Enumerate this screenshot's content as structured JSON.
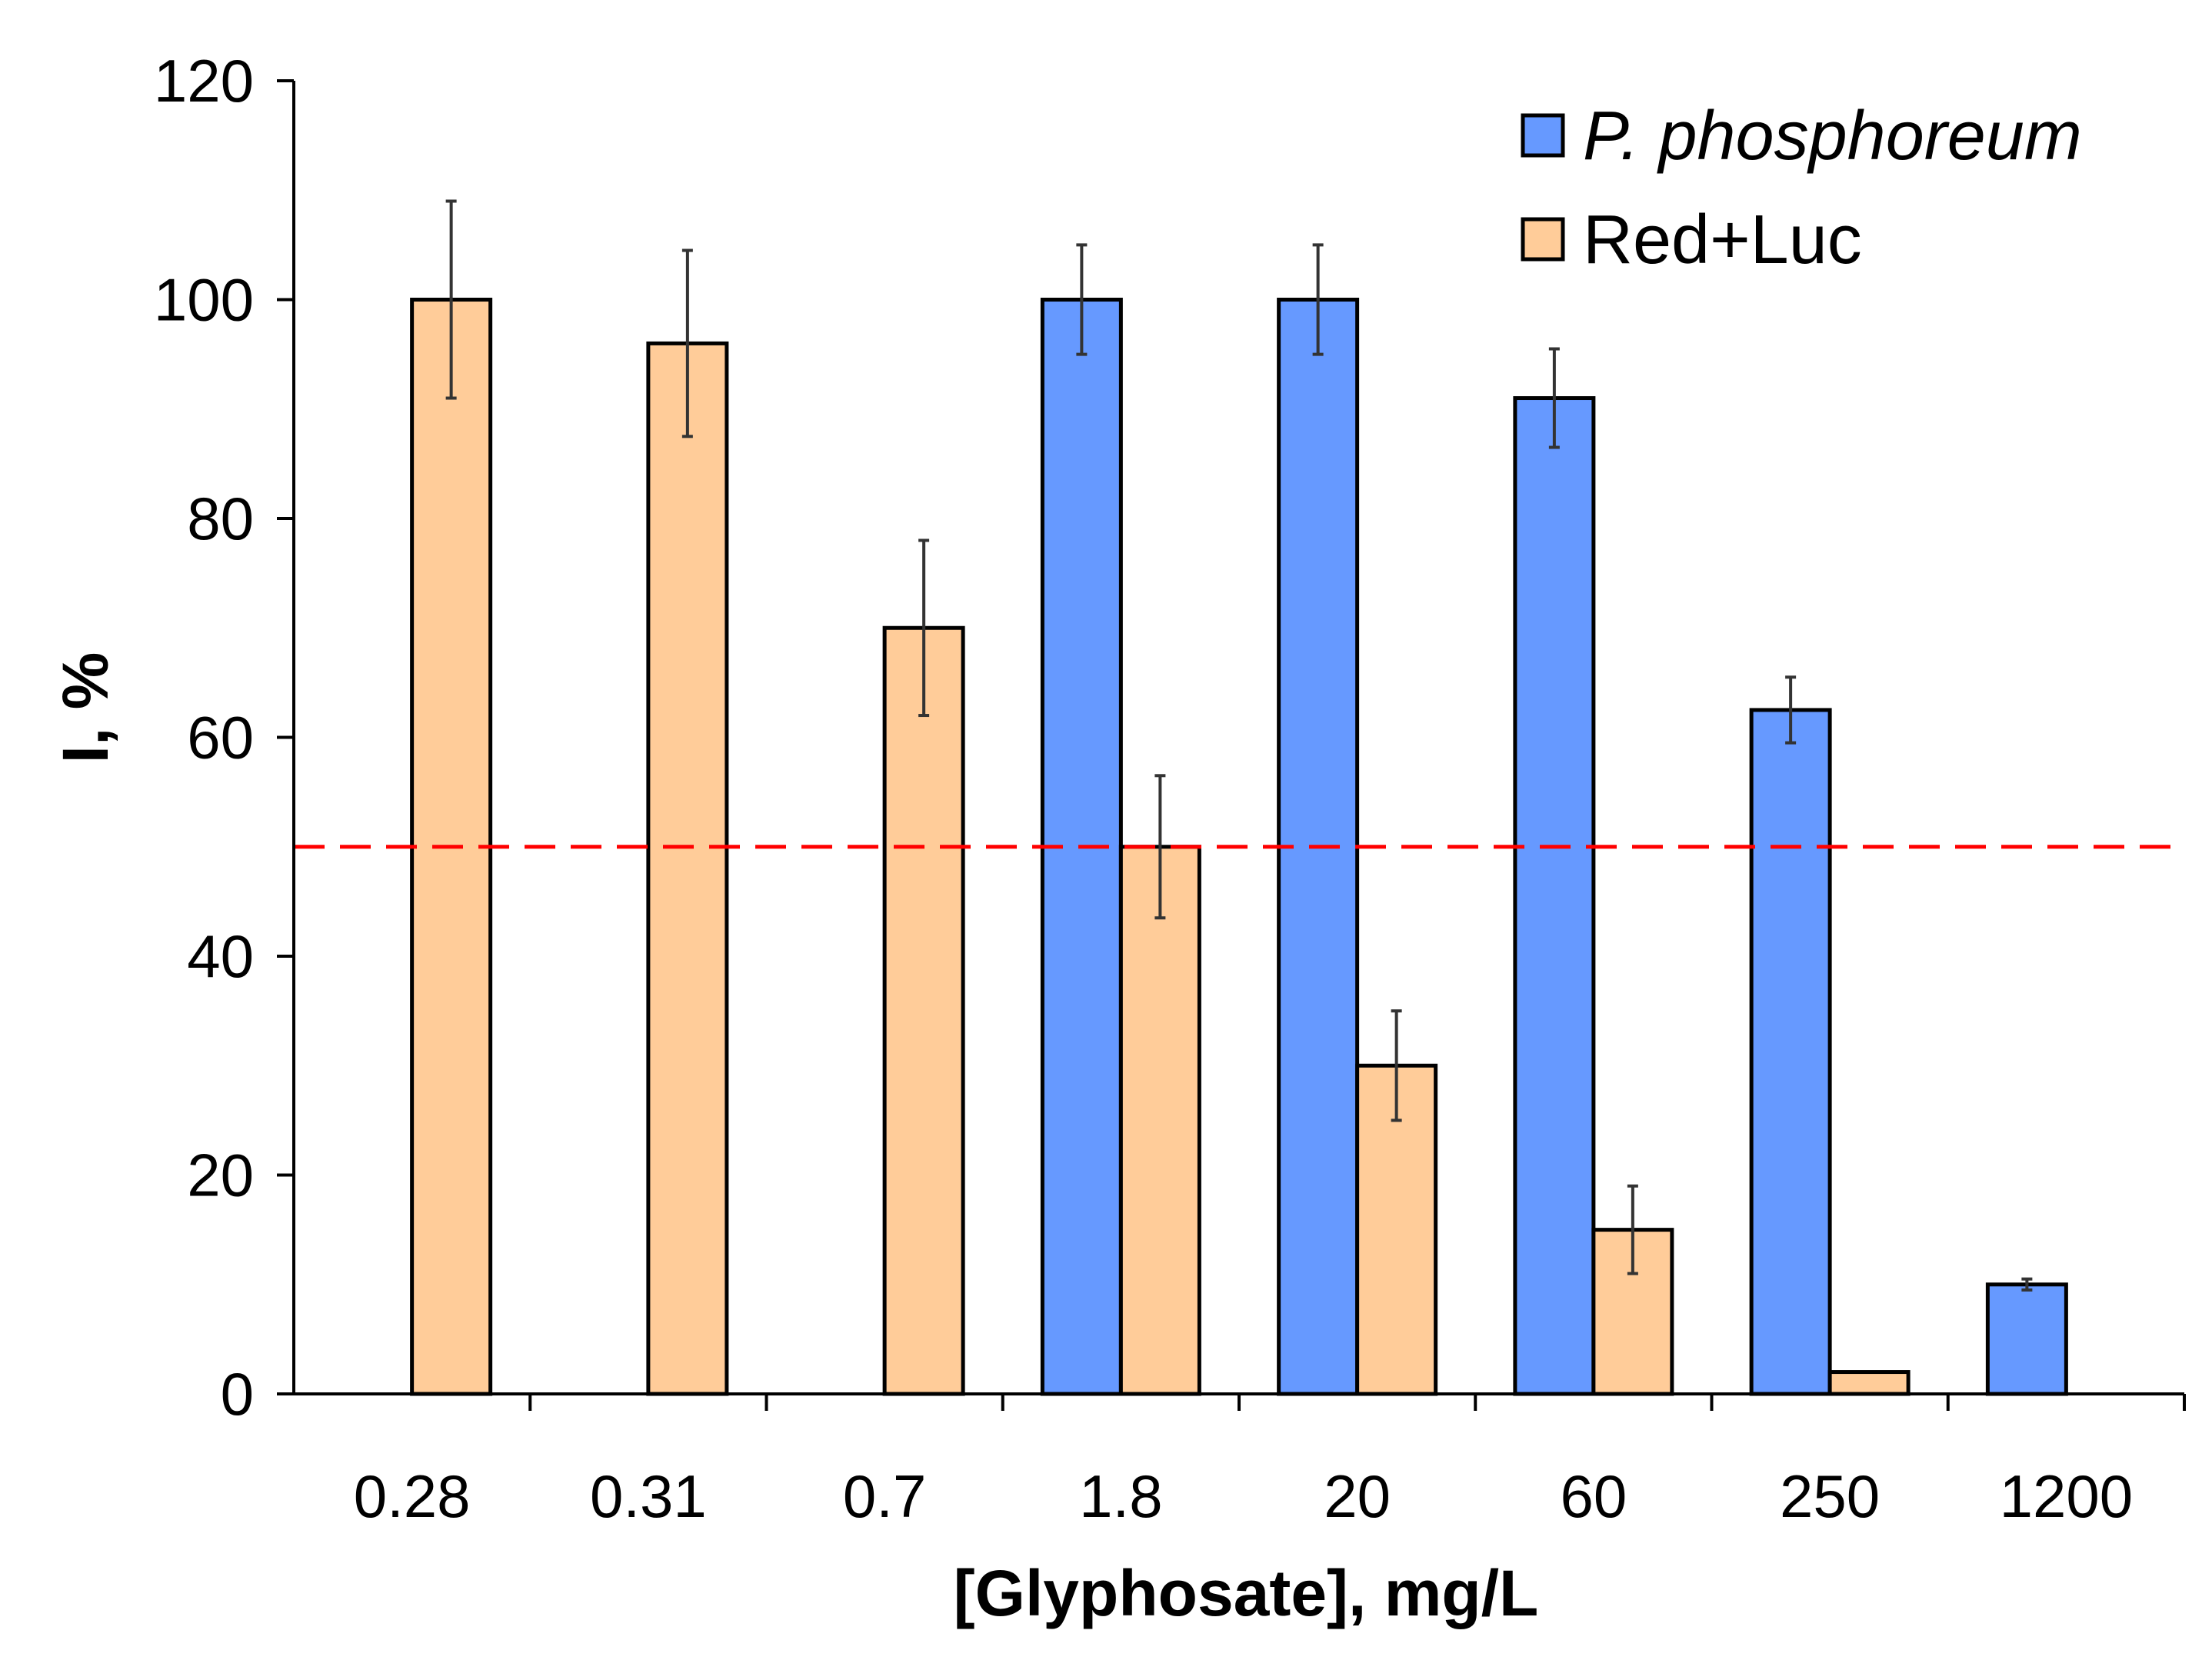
{
  "chart_data": {
    "type": "bar",
    "title": "",
    "xlabel": "[Glyphosate], mg/L",
    "ylabel": "I, %",
    "ylim": [
      0,
      120
    ],
    "yticks": [
      0,
      20,
      40,
      60,
      80,
      100,
      120
    ],
    "ytick_labels": [
      "0",
      "20",
      "40",
      "60",
      "80",
      "100",
      "120"
    ],
    "categories": [
      "0.28",
      "0.31",
      "0.7",
      "1.8",
      "20",
      "60",
      "250",
      "1200"
    ],
    "legend_position": "top-right",
    "series": [
      {
        "name": "P. phosphoreum",
        "italic": true,
        "color": "#6699FF",
        "values": [
          null,
          null,
          null,
          100,
          100,
          91,
          62.5,
          10
        ],
        "errors": [
          null,
          null,
          null,
          5,
          5,
          4.5,
          3,
          0.5
        ]
      },
      {
        "name": "Red+Luc",
        "italic": false,
        "color": "#FFCC99",
        "values": [
          100,
          96,
          70,
          50,
          30,
          15,
          2,
          null
        ],
        "errors": [
          9,
          8.5,
          8,
          6.5,
          5,
          4,
          0,
          null
        ]
      }
    ],
    "reference_line": {
      "y": 50,
      "style": "dashed",
      "color": "#FF0000"
    },
    "grid": false
  }
}
